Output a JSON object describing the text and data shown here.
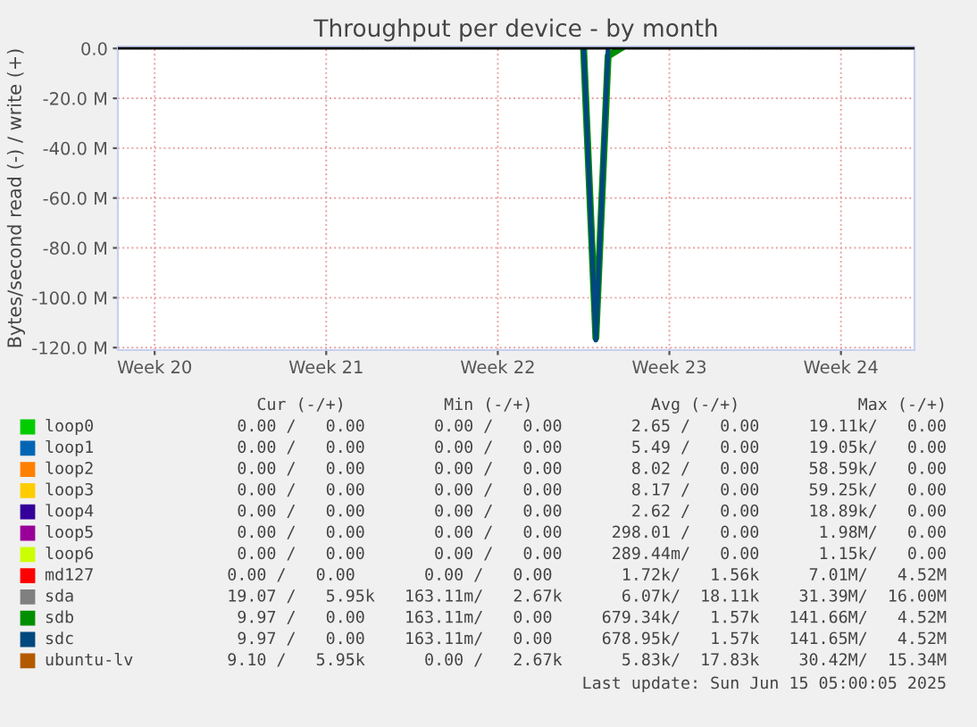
{
  "chart_data": {
    "type": "line",
    "title": "Throughput per device - by month",
    "ylabel": "Bytes/second read (-) / write (+)",
    "categories": [
      null,
      null,
      null,
      "Week 20",
      null,
      null,
      null,
      null,
      null,
      null,
      null,
      null,
      null,
      null,
      null,
      null,
      null,
      "Week 21",
      null,
      null,
      null,
      null,
      null,
      null,
      null,
      null,
      null,
      null,
      null,
      null,
      null,
      "Week 22",
      null,
      null,
      null,
      null,
      null,
      null,
      null,
      null,
      null,
      null,
      null,
      null,
      null,
      "Week 23",
      null,
      null,
      null,
      null,
      null,
      null,
      null,
      null,
      null,
      null,
      null,
      null,
      null,
      "Week 24",
      null,
      null,
      null,
      null,
      null,
      null
    ],
    "ylim": [
      -121,
      0.8
    ],
    "yticks": [
      {
        "value": 0,
        "label": "0.0"
      },
      {
        "value": -20,
        "label": "-20.0 M"
      },
      {
        "value": -40,
        "label": "-40.0 M"
      },
      {
        "value": -60,
        "label": "-60.0 M"
      },
      {
        "value": -80,
        "label": "-80.0 M"
      },
      {
        "value": -100,
        "label": "-100.0 M"
      },
      {
        "value": -120,
        "label": "-120.0 M"
      }
    ],
    "grid": true,
    "legend": "bottom",
    "ref_lines": [
      {
        "axis": "y",
        "value": 0,
        "label": null,
        "color": "#000000"
      }
    ],
    "series": [
      {
        "name": "loop0",
        "color": "#00cc00",
        "values": [
          null,
          null,
          null,
          null,
          null,
          null,
          null,
          null,
          null,
          null,
          null,
          null,
          null,
          null,
          null,
          null,
          null,
          null,
          null,
          null,
          null,
          null,
          null,
          null,
          null,
          null,
          null,
          null,
          null,
          null,
          null,
          null,
          null,
          null,
          null,
          null,
          null,
          null,
          null,
          null,
          null,
          null,
          null,
          null,
          null,
          null,
          null,
          null,
          null,
          null,
          null,
          null,
          null,
          null,
          null,
          null,
          null,
          null,
          null,
          null,
          null,
          null,
          null,
          null,
          null,
          null
        ]
      },
      {
        "name": "loop1",
        "color": "#0066b3",
        "values": [
          null,
          null,
          null,
          null,
          null,
          null,
          null,
          null,
          null,
          null,
          null,
          null,
          null,
          null,
          null,
          null,
          null,
          null,
          null,
          null,
          null,
          null,
          null,
          null,
          null,
          null,
          null,
          null,
          null,
          null,
          null,
          null,
          null,
          null,
          null,
          null,
          null,
          null,
          null,
          null,
          null,
          null,
          null,
          null,
          null,
          null,
          null,
          null,
          null,
          null,
          null,
          null,
          null,
          null,
          null,
          null,
          null,
          null,
          null,
          null,
          null,
          null,
          null,
          null,
          null,
          null
        ]
      },
      {
        "name": "loop2",
        "color": "#ff8000",
        "values": [
          null,
          null,
          null,
          null,
          null,
          null,
          null,
          null,
          null,
          null,
          null,
          null,
          null,
          null,
          null,
          null,
          null,
          null,
          null,
          null,
          null,
          null,
          null,
          null,
          null,
          null,
          null,
          null,
          null,
          null,
          null,
          null,
          null,
          null,
          null,
          null,
          null,
          null,
          null,
          null,
          null,
          null,
          null,
          null,
          null,
          null,
          null,
          null,
          null,
          null,
          null,
          null,
          null,
          null,
          null,
          null,
          null,
          null,
          null,
          null,
          null,
          null,
          null,
          null,
          null,
          null
        ]
      },
      {
        "name": "loop3",
        "color": "#ffcc00",
        "values": [
          null,
          null,
          null,
          null,
          null,
          null,
          null,
          null,
          null,
          null,
          null,
          null,
          null,
          null,
          null,
          null,
          null,
          null,
          null,
          null,
          null,
          null,
          null,
          null,
          null,
          null,
          null,
          null,
          null,
          null,
          null,
          null,
          null,
          null,
          null,
          null,
          null,
          null,
          null,
          null,
          null,
          null,
          null,
          null,
          null,
          null,
          null,
          null,
          null,
          null,
          null,
          null,
          null,
          null,
          null,
          null,
          null,
          null,
          null,
          null,
          null,
          null,
          null,
          null,
          null,
          null
        ]
      },
      {
        "name": "loop4",
        "color": "#330099",
        "values": [
          null,
          null,
          null,
          null,
          null,
          null,
          null,
          null,
          null,
          null,
          null,
          null,
          null,
          null,
          null,
          null,
          null,
          null,
          null,
          null,
          null,
          null,
          null,
          null,
          null,
          null,
          null,
          null,
          null,
          null,
          null,
          null,
          null,
          null,
          null,
          null,
          null,
          null,
          null,
          null,
          null,
          null,
          null,
          null,
          null,
          null,
          null,
          null,
          null,
          null,
          null,
          null,
          null,
          null,
          null,
          null,
          null,
          null,
          null,
          null,
          null,
          null,
          null,
          null,
          null,
          null
        ]
      },
      {
        "name": "loop5",
        "color": "#990099",
        "values": [
          null,
          null,
          null,
          null,
          null,
          null,
          null,
          null,
          null,
          null,
          null,
          null,
          null,
          null,
          null,
          null,
          null,
          null,
          null,
          null,
          null,
          null,
          null,
          null,
          null,
          null,
          null,
          null,
          null,
          null,
          null,
          null,
          null,
          null,
          null,
          null,
          null,
          null,
          null,
          null,
          null,
          null,
          null,
          null,
          null,
          null,
          null,
          null,
          null,
          null,
          null,
          null,
          null,
          null,
          null,
          null,
          null,
          null,
          null,
          null,
          null,
          null,
          null,
          null,
          null,
          null
        ]
      },
      {
        "name": "loop6",
        "color": "#ccff00",
        "values": [
          null,
          null,
          null,
          null,
          null,
          null,
          null,
          null,
          null,
          null,
          null,
          null,
          null,
          null,
          null,
          null,
          null,
          null,
          null,
          null,
          null,
          null,
          null,
          null,
          null,
          null,
          null,
          null,
          null,
          null,
          null,
          null,
          null,
          null,
          null,
          null,
          null,
          null,
          null,
          null,
          null,
          null,
          null,
          null,
          null,
          null,
          null,
          null,
          null,
          null,
          null,
          null,
          null,
          null,
          null,
          null,
          null,
          null,
          null,
          null,
          null,
          null,
          null,
          null,
          null,
          null
        ]
      },
      {
        "name": "md127",
        "color": "#ff0000",
        "values": [
          null,
          null,
          null,
          null,
          null,
          null,
          null,
          null,
          null,
          null,
          null,
          null,
          null,
          null,
          null,
          null,
          null,
          null,
          null,
          null,
          null,
          null,
          null,
          null,
          null,
          null,
          null,
          null,
          null,
          null,
          null,
          null,
          null,
          null,
          null,
          null,
          null,
          null,
          null,
          null,
          null,
          null,
          null,
          null,
          null,
          null,
          null,
          null,
          null,
          null,
          null,
          null,
          null,
          null,
          null,
          null,
          null,
          null,
          null,
          null,
          null,
          null,
          null,
          null,
          null,
          null
        ]
      },
      {
        "name": "sda",
        "color": "#808080",
        "values": [
          null,
          null,
          null,
          null,
          null,
          null,
          null,
          null,
          null,
          null,
          null,
          null,
          null,
          null,
          null,
          null,
          null,
          null,
          null,
          null,
          null,
          null,
          null,
          null,
          null,
          null,
          null,
          null,
          null,
          null,
          null,
          null,
          null,
          null,
          null,
          null,
          null,
          null,
          null,
          null,
          null,
          null,
          null,
          null,
          null,
          null,
          null,
          null,
          null,
          null,
          null,
          null,
          null,
          null,
          null,
          null,
          null,
          null,
          null,
          null,
          null,
          null,
          null,
          null,
          null,
          null
        ]
      },
      {
        "name": "sdb",
        "color": "#008f00",
        "values": [
          null,
          null,
          null,
          null,
          null,
          null,
          null,
          null,
          null,
          null,
          null,
          null,
          null,
          null,
          null,
          null,
          null,
          null,
          null,
          null,
          null,
          null,
          null,
          null,
          null,
          null,
          null,
          null,
          null,
          null,
          null,
          null,
          null,
          null,
          null,
          null,
          null,
          null,
          0,
          -116,
          -3,
          0,
          null,
          null,
          null,
          null,
          null,
          null,
          null,
          null,
          null,
          null,
          null,
          null,
          null,
          null,
          null,
          null,
          null,
          null,
          null,
          null,
          null,
          null,
          null,
          null
        ]
      },
      {
        "name": "sdc",
        "color": "#00487d",
        "values": [
          null,
          null,
          null,
          null,
          null,
          null,
          null,
          null,
          null,
          null,
          null,
          null,
          null,
          null,
          null,
          null,
          null,
          null,
          null,
          null,
          null,
          null,
          null,
          null,
          null,
          null,
          null,
          null,
          null,
          null,
          null,
          null,
          null,
          null,
          null,
          null,
          null,
          null,
          0,
          -117,
          0,
          null,
          null,
          null,
          null,
          null,
          null,
          null,
          null,
          null,
          null,
          null,
          null,
          null,
          null,
          null,
          null,
          null,
          null,
          null,
          null,
          null,
          null,
          null,
          null,
          null
        ]
      },
      {
        "name": "ubuntu-lv",
        "color": "#b35a00",
        "values": [
          null,
          null,
          null,
          null,
          null,
          null,
          null,
          null,
          null,
          null,
          null,
          null,
          null,
          null,
          null,
          null,
          null,
          null,
          null,
          null,
          null,
          null,
          null,
          null,
          null,
          null,
          null,
          null,
          null,
          null,
          null,
          null,
          null,
          null,
          null,
          null,
          null,
          null,
          null,
          null,
          null,
          null,
          null,
          null,
          null,
          null,
          null,
          null,
          null,
          null,
          null,
          null,
          null,
          null,
          null,
          null,
          null,
          null,
          null,
          null,
          null,
          null,
          null,
          null,
          null,
          null
        ]
      }
    ],
    "annotations": [
      "     Cur (-/+)          Min (-/+)            Avg (-/+)            Max (-/+)",
      "  0.00 /   0.00       0.00 /   0.00       2.65 /   0.00     19.11k/   0.00",
      "  0.00 /   0.00       0.00 /   0.00       5.49 /   0.00     19.05k/   0.00",
      "  0.00 /   0.00       0.00 /   0.00       8.02 /   0.00     58.59k/   0.00",
      "  0.00 /   0.00       0.00 /   0.00       8.17 /   0.00     59.25k/   0.00",
      "  0.00 /   0.00       0.00 /   0.00       2.62 /   0.00     18.89k/   0.00",
      "  0.00 /   0.00       0.00 /   0.00     298.01 /   0.00      1.98M/   0.00",
      "  0.00 /   0.00       0.00 /   0.00     289.44m/   0.00      1.15k/   0.00",
      "  0.00 /   0.00       0.00 /   0.00       1.72k/   1.56k     7.01M/   4.52M",
      " 19.07 /   5.95k   163.11m/   2.67k      6.07k/  18.11k    31.39M/  16.00M",
      "  9.97 /   0.00    163.11m/   0.00     679.34k/   1.57k   141.66M/   4.52M",
      "  9.97 /   0.00    163.11m/   0.00     678.95k/   1.57k   141.65M/   4.52M",
      "  9.10 /   5.95k      0.00 /   2.67k      5.83k/  17.83k    30.42M/  15.34M",
      "Last update: Sun Jun 15 05:00:05 2025"
    ]
  }
}
